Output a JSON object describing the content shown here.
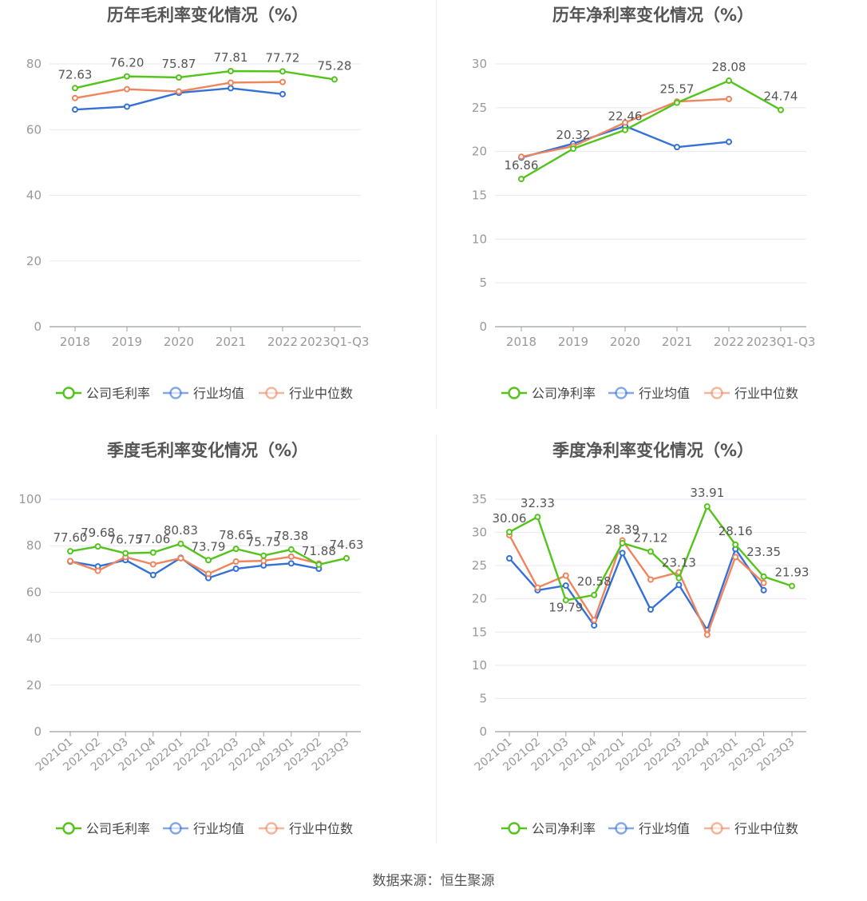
{
  "colors": {
    "company": "#52c41a",
    "average": "#3470d6",
    "median": "#f0845c",
    "grid": "#e6e9f2",
    "axis": "#999999",
    "title": "#555555",
    "label": "#555555"
  },
  "legend_labels": {
    "gross": [
      "公司毛利率",
      "行业均值",
      "行业中位数"
    ],
    "net": [
      "公司净利率",
      "行业均值",
      "行业中位数"
    ]
  },
  "footer": "数据来源：恒生聚源",
  "chart_data": [
    {
      "type": "line",
      "title": "历年毛利率变化情况（%）",
      "categories": [
        "2018",
        "2019",
        "2020",
        "2021",
        "2022",
        "2023Q1-Q3"
      ],
      "ylim": [
        0,
        80
      ],
      "yticks": [
        0,
        20,
        40,
        60,
        80
      ],
      "legend": "bottom",
      "series": [
        {
          "name": "公司毛利率",
          "values": [
            72.63,
            76.2,
            75.87,
            77.81,
            77.72,
            75.28
          ],
          "labels": [
            "72.63",
            "76.20",
            "75.87",
            "77.81",
            "77.72",
            "75.28"
          ]
        },
        {
          "name": "行业均值",
          "values": [
            66.1,
            67.0,
            71.2,
            72.6,
            70.8,
            null
          ]
        },
        {
          "name": "行业中位数",
          "values": [
            69.6,
            72.3,
            71.6,
            74.3,
            74.5,
            null
          ]
        }
      ]
    },
    {
      "type": "line",
      "title": "历年净利率变化情况（%）",
      "categories": [
        "2018",
        "2019",
        "2020",
        "2021",
        "2022",
        "2023Q1-Q3"
      ],
      "ylim": [
        0,
        30
      ],
      "yticks": [
        0,
        5,
        10,
        15,
        20,
        25,
        30
      ],
      "legend": "bottom",
      "series": [
        {
          "name": "公司净利率",
          "values": [
            16.86,
            20.32,
            22.46,
            25.57,
            28.08,
            24.74
          ],
          "labels": [
            "16.86",
            "20.32",
            "22.46",
            "25.57",
            "28.08",
            "24.74"
          ]
        },
        {
          "name": "行业均值",
          "values": [
            19.3,
            20.9,
            22.9,
            20.5,
            21.1,
            null
          ]
        },
        {
          "name": "行业中位数",
          "values": [
            19.4,
            20.6,
            23.3,
            25.7,
            26.0,
            null
          ]
        }
      ]
    },
    {
      "type": "line",
      "title": "季度毛利率变化情况（%）",
      "categories": [
        "2021Q1",
        "2021Q2",
        "2021Q3",
        "2021Q4",
        "2022Q1",
        "2022Q2",
        "2022Q3",
        "2022Q4",
        "2023Q1",
        "2023Q2",
        "2023Q3"
      ],
      "ylim": [
        0,
        100
      ],
      "yticks": [
        0,
        20,
        40,
        60,
        80,
        100
      ],
      "legend": "bottom",
      "series": [
        {
          "name": "公司毛利率",
          "values": [
            77.6,
            79.68,
            76.75,
            77.06,
            80.83,
            73.79,
            78.65,
            75.75,
            78.38,
            71.88,
            74.63
          ],
          "labels": [
            "77.60",
            "79.68",
            "76.75",
            "77.06",
            "80.83",
            "73.79",
            "78.65",
            "75.75",
            "78.38",
            "71.88",
            "74.63"
          ]
        },
        {
          "name": "行业均值",
          "values": [
            73.2,
            71.1,
            73.8,
            67.4,
            74.8,
            66.1,
            70.1,
            71.5,
            72.4,
            70.1,
            null
          ]
        },
        {
          "name": "行业中位数",
          "values": [
            73.4,
            69.2,
            75.1,
            72.0,
            74.6,
            67.9,
            73.2,
            73.5,
            75.3,
            72.3,
            null
          ]
        }
      ]
    },
    {
      "type": "line",
      "title": "季度净利率变化情况（%）",
      "categories": [
        "2021Q1",
        "2021Q2",
        "2021Q3",
        "2021Q4",
        "2022Q1",
        "2022Q2",
        "2022Q3",
        "2022Q4",
        "2023Q1",
        "2023Q2",
        "2023Q3"
      ],
      "ylim": [
        0,
        35
      ],
      "yticks": [
        0,
        5,
        10,
        15,
        20,
        25,
        30,
        35
      ],
      "legend": "bottom",
      "series": [
        {
          "name": "公司净利率",
          "values": [
            30.06,
            32.33,
            19.79,
            20.58,
            28.39,
            27.12,
            23.13,
            33.91,
            28.16,
            23.35,
            21.93
          ],
          "labels": [
            "30.06",
            "32.33",
            "19.79",
            "20.58",
            "28.39",
            "27.12",
            "23.13",
            "33.91",
            "28.16",
            "23.35",
            "21.93"
          ]
        },
        {
          "name": "行业均值",
          "values": [
            26.1,
            21.3,
            22.0,
            16.0,
            26.9,
            18.4,
            22.1,
            15.3,
            27.5,
            21.3,
            null
          ]
        },
        {
          "name": "行业中位数",
          "values": [
            29.6,
            21.7,
            23.5,
            16.8,
            28.8,
            22.9,
            24.0,
            14.6,
            26.3,
            22.4,
            null
          ]
        }
      ]
    }
  ]
}
